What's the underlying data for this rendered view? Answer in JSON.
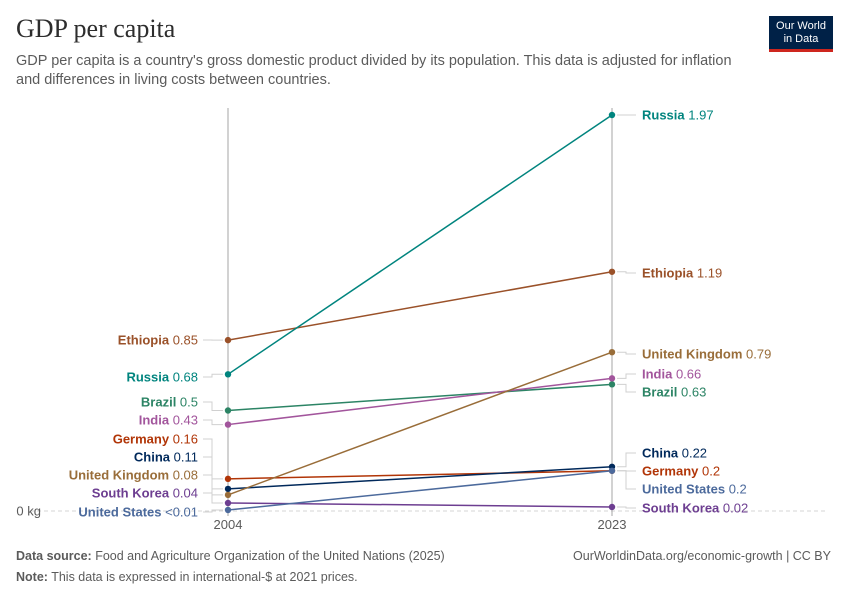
{
  "header": {
    "title": "GDP per capita",
    "subtitle": "GDP per capita is a country's gross domestic product divided by its population. This data is adjusted for inflation and differences in living costs between countries.",
    "logo_line1": "Our World",
    "logo_line2": "in Data"
  },
  "footer": {
    "source_label": "Data source:",
    "source_text": " Food and Agriculture Organization of the United Nations (2025)",
    "note_label": "Note:",
    "note_text": " This data is expressed in international-$ at 2021 prices.",
    "link": "OurWorldinData.org/economic-growth | CC BY"
  },
  "chart_data": {
    "type": "slope",
    "x": [
      "2004",
      "2023"
    ],
    "y_axis_label": "0 kg",
    "ylim": [
      0,
      1.97
    ],
    "series": [
      {
        "name": "Ethiopia",
        "color": "#9a5129",
        "start": 0.85,
        "end": 1.19,
        "start_label": "0.85",
        "end_label": "1.19"
      },
      {
        "name": "Russia",
        "color": "#00847e",
        "start": 0.68,
        "end": 1.97,
        "start_label": "0.68",
        "end_label": "1.97"
      },
      {
        "name": "Brazil",
        "color": "#2c8465",
        "start": 0.5,
        "end": 0.63,
        "start_label": "0.5",
        "end_label": "0.63"
      },
      {
        "name": "India",
        "color": "#a2559c",
        "start": 0.43,
        "end": 0.66,
        "start_label": "0.43",
        "end_label": "0.66"
      },
      {
        "name": "Germany",
        "color": "#b13507",
        "start": 0.16,
        "end": 0.2,
        "start_label": "0.16",
        "end_label": "0.2"
      },
      {
        "name": "China",
        "color": "#00295b",
        "start": 0.11,
        "end": 0.22,
        "start_label": "0.11",
        "end_label": "0.22"
      },
      {
        "name": "United Kingdom",
        "color": "#996d39",
        "start": 0.08,
        "end": 0.79,
        "start_label": "0.08",
        "end_label": "0.79"
      },
      {
        "name": "South Korea",
        "color": "#6d3e91",
        "start": 0.04,
        "end": 0.02,
        "start_label": "0.04",
        "end_label": "0.02"
      },
      {
        "name": "United States",
        "color": "#4c6a9c",
        "start": 0.005,
        "end": 0.2,
        "start_label": "<0.01",
        "end_label": "0.2"
      }
    ]
  }
}
